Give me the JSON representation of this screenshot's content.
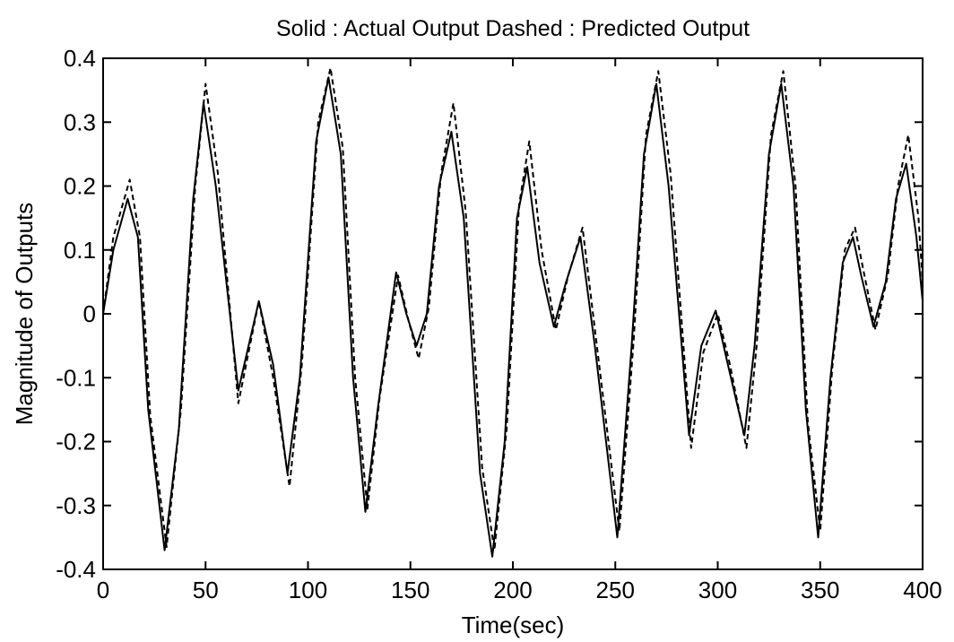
{
  "chart_data": {
    "type": "line",
    "title": "Solid : Actual Output Dashed : Predicted Output",
    "xlabel": "Time(sec)",
    "ylabel": "Magnitude of Outputs",
    "xlim": [
      0,
      400
    ],
    "ylim": [
      -0.4,
      0.4
    ],
    "xticks": [
      0,
      50,
      100,
      150,
      200,
      250,
      300,
      350,
      400
    ],
    "yticks": [
      -0.4,
      -0.3,
      -0.2,
      -0.1,
      0,
      0.1,
      0.2,
      0.3,
      0.4
    ],
    "xtick_labels": [
      "0",
      "50",
      "100",
      "150",
      "200",
      "250",
      "300",
      "350",
      "400"
    ],
    "ytick_labels": [
      "-0.4",
      "-0.3",
      "-0.2",
      "-0.1",
      "0",
      "0.1",
      "0.2",
      "0.3",
      "0.4"
    ],
    "grid": false,
    "series": [
      {
        "style": "solid",
        "color": "#000000",
        "points": [
          [
            0,
            0
          ],
          [
            5,
            0.1
          ],
          [
            12,
            0.18
          ],
          [
            17,
            0.12
          ],
          [
            22,
            -0.15
          ],
          [
            30,
            -0.37
          ],
          [
            37,
            -0.18
          ],
          [
            44,
            0.18
          ],
          [
            49,
            0.33
          ],
          [
            55,
            0.2
          ],
          [
            66,
            -0.12
          ],
          [
            76,
            0.02
          ],
          [
            83,
            -0.08
          ],
          [
            90,
            -0.25
          ],
          [
            96,
            -0.1
          ],
          [
            104,
            0.27
          ],
          [
            110,
            0.37
          ],
          [
            116,
            0.25
          ],
          [
            122,
            -0.1
          ],
          [
            128,
            -0.31
          ],
          [
            134,
            -0.15
          ],
          [
            143,
            0.065
          ],
          [
            148,
            0.0
          ],
          [
            153,
            -0.05
          ],
          [
            158,
            0.0
          ],
          [
            164,
            0.2
          ],
          [
            170,
            0.285
          ],
          [
            176,
            0.15
          ],
          [
            184,
            -0.25
          ],
          [
            190,
            -0.38
          ],
          [
            196,
            -0.2
          ],
          [
            202,
            0.15
          ],
          [
            207,
            0.23
          ],
          [
            213,
            0.08
          ],
          [
            220,
            -0.02
          ],
          [
            226,
            0.05
          ],
          [
            233,
            0.12
          ],
          [
            240,
            -0.05
          ],
          [
            251,
            -0.35
          ],
          [
            258,
            -0.05
          ],
          [
            264,
            0.25
          ],
          [
            270,
            0.36
          ],
          [
            276,
            0.2
          ],
          [
            286,
            -0.19
          ],
          [
            292,
            -0.05
          ],
          [
            299,
            0.005
          ],
          [
            305,
            -0.08
          ],
          [
            313,
            -0.19
          ],
          [
            318,
            -0.05
          ],
          [
            325,
            0.25
          ],
          [
            331,
            0.36
          ],
          [
            337,
            0.2
          ],
          [
            343,
            -0.15
          ],
          [
            349,
            -0.35
          ],
          [
            355,
            -0.1
          ],
          [
            361,
            0.08
          ],
          [
            366,
            0.12
          ],
          [
            370,
            0.06
          ],
          [
            376,
            -0.02
          ],
          [
            382,
            0.05
          ],
          [
            387,
            0.18
          ],
          [
            392,
            0.235
          ],
          [
            397,
            0.12
          ],
          [
            400,
            0.02
          ]
        ]
      },
      {
        "style": "dashed",
        "color": "#000000",
        "points": [
          [
            0,
            0
          ],
          [
            5,
            0.12
          ],
          [
            13,
            0.21
          ],
          [
            18,
            0.12
          ],
          [
            23,
            -0.16
          ],
          [
            31,
            -0.365
          ],
          [
            38,
            -0.15
          ],
          [
            45,
            0.2
          ],
          [
            50,
            0.36
          ],
          [
            56,
            0.22
          ],
          [
            66,
            -0.14
          ],
          [
            76,
            0.02
          ],
          [
            83,
            -0.1
          ],
          [
            91,
            -0.27
          ],
          [
            97,
            -0.08
          ],
          [
            105,
            0.3
          ],
          [
            111,
            0.385
          ],
          [
            117,
            0.26
          ],
          [
            123,
            -0.1
          ],
          [
            129,
            -0.305
          ],
          [
            135,
            -0.13
          ],
          [
            144,
            0.06
          ],
          [
            149,
            -0.01
          ],
          [
            154,
            -0.07
          ],
          [
            159,
            0.01
          ],
          [
            165,
            0.22
          ],
          [
            171,
            0.33
          ],
          [
            177,
            0.16
          ],
          [
            185,
            -0.24
          ],
          [
            191,
            -0.37
          ],
          [
            197,
            -0.18
          ],
          [
            203,
            0.17
          ],
          [
            208,
            0.27
          ],
          [
            214,
            0.1
          ],
          [
            221,
            -0.025
          ],
          [
            227,
            0.06
          ],
          [
            234,
            0.135
          ],
          [
            241,
            -0.05
          ],
          [
            252,
            -0.34
          ],
          [
            259,
            -0.04
          ],
          [
            265,
            0.28
          ],
          [
            271,
            0.38
          ],
          [
            277,
            0.22
          ],
          [
            287,
            -0.21
          ],
          [
            293,
            -0.06
          ],
          [
            300,
            0.0
          ],
          [
            306,
            -0.08
          ],
          [
            314,
            -0.21
          ],
          [
            319,
            -0.05
          ],
          [
            326,
            0.28
          ],
          [
            332,
            0.38
          ],
          [
            338,
            0.2
          ],
          [
            344,
            -0.17
          ],
          [
            350,
            -0.34
          ],
          [
            356,
            -0.08
          ],
          [
            362,
            0.1
          ],
          [
            367,
            0.135
          ],
          [
            371,
            0.07
          ],
          [
            377,
            -0.025
          ],
          [
            383,
            0.06
          ],
          [
            388,
            0.2
          ],
          [
            393,
            0.28
          ],
          [
            398,
            0.15
          ],
          [
            400,
            0.05
          ]
        ]
      }
    ]
  }
}
